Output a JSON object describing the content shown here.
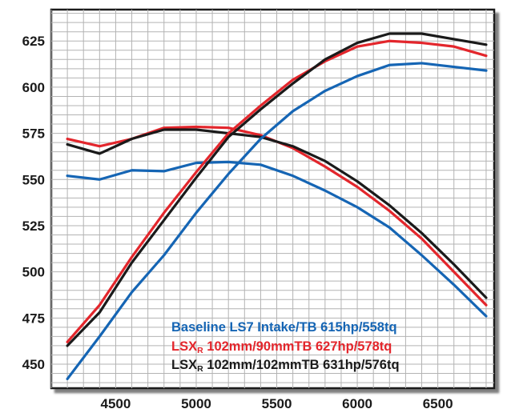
{
  "chart_data": {
    "type": "line",
    "xlim": [
      4100,
      6850
    ],
    "ylim": [
      437,
      642
    ],
    "x_ticks": [
      4500,
      5000,
      5500,
      6000,
      6500
    ],
    "y_ticks": [
      450,
      475,
      500,
      525,
      550,
      575,
      600,
      625
    ],
    "grid": true,
    "grid_minor_x": 100,
    "grid_minor_y": 5,
    "legend_position": "bottom-right inside plot",
    "series": [
      {
        "name": "Baseline LS7 Intake/TB 615hp/558tq",
        "color": "#1565b4",
        "curves": [
          {
            "measure": "hp",
            "x": [
              4200,
              4400,
              4600,
              4800,
              5000,
              5200,
              5400,
              5600,
              5800,
              6000,
              6200,
              6400,
              6600,
              6800
            ],
            "y": [
              442,
              465,
              489,
              509,
              532,
              553,
              572,
              587,
              598,
              606,
              612,
              613,
              611,
              609
            ]
          },
          {
            "measure": "tq",
            "x": [
              4200,
              4400,
              4600,
              4800,
              5000,
              5200,
              5400,
              5600,
              5800,
              6000,
              6200,
              6400,
              6600,
              6800
            ],
            "y": [
              552,
              550,
              555,
              554.5,
              559,
              559.5,
              558,
              552,
              544,
              535,
              524,
              509,
              493,
              476
            ]
          }
        ]
      },
      {
        "name": "LSX 102mm/90mmTB 627hp/578tq",
        "legend_main": "LSX",
        "legend_sub": "R",
        "legend_rest": " 102mm/90mmTB 627hp/578tq",
        "color": "#e3262c",
        "curves": [
          {
            "measure": "hp",
            "x": [
              4200,
              4400,
              4600,
              4800,
              5000,
              5200,
              5400,
              5600,
              5800,
              6000,
              6200,
              6400,
              6600,
              6800
            ],
            "y": [
              462,
              482,
              508,
              532,
              554,
              575,
              590,
              604,
              614,
              622,
              625,
              624,
              622,
              617
            ]
          },
          {
            "measure": "tq",
            "x": [
              4200,
              4400,
              4600,
              4800,
              5000,
              5200,
              5400,
              5600,
              5800,
              6000,
              6200,
              6400,
              6600,
              6800
            ],
            "y": [
              572,
              568,
              572,
              578,
              578.5,
              578,
              574,
              567,
              557,
              546,
              533,
              518,
              500,
              482
            ]
          }
        ]
      },
      {
        "name": "LSX 102mm/102mmTB 631hp/576tq",
        "legend_main": "LSX",
        "legend_sub": "R",
        "legend_rest": " 102mm/102mmTB 631hp/576tq",
        "color": "#1a1a1a",
        "curves": [
          {
            "measure": "hp",
            "x": [
              4200,
              4400,
              4600,
              4800,
              5000,
              5200,
              5400,
              5600,
              5800,
              6000,
              6200,
              6400,
              6600,
              6800
            ],
            "y": [
              460,
              478,
              505,
              528,
              551,
              573,
              588,
              602,
              615,
              624,
              629,
              629,
              626,
              623
            ]
          },
          {
            "measure": "tq",
            "x": [
              4200,
              4400,
              4600,
              4800,
              5000,
              5200,
              5400,
              5600,
              5800,
              6000,
              6200,
              6400,
              6600,
              6800
            ],
            "y": [
              569,
              564,
              572,
              577,
              577,
              575,
              573,
              568,
              560,
              549,
              536,
              521,
              504,
              486
            ]
          }
        ]
      }
    ]
  }
}
